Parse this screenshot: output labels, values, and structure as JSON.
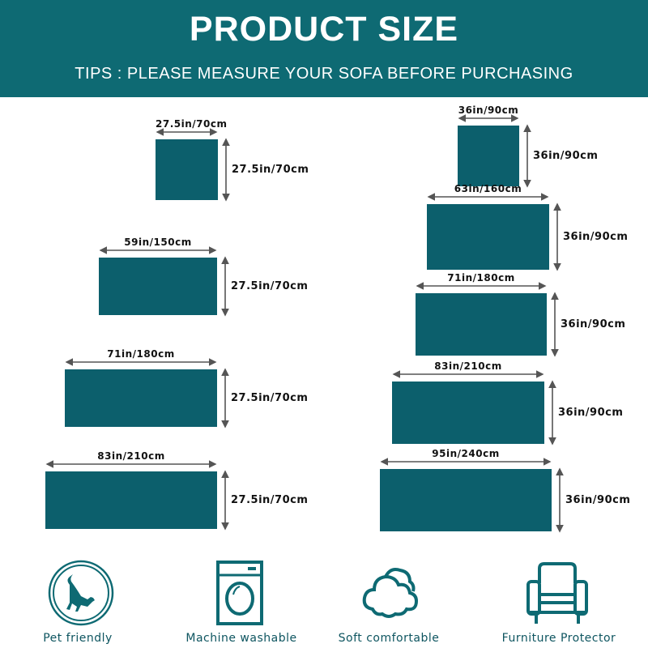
{
  "header": {
    "title": "PRODUCT SIZE",
    "tips": "TIPS : PLEASE MEASURE YOUR SOFA BEFORE PURCHASING"
  },
  "colors": {
    "header": "#0e6a73",
    "product": "#0c5f6c",
    "icon": "#0e6a73"
  },
  "left_sizes": [
    {
      "width": "27.5in/70cm",
      "height": "27.5in/70cm"
    },
    {
      "width": "59in/150cm",
      "height": "27.5in/70cm"
    },
    {
      "width": "71in/180cm",
      "height": "27.5in/70cm"
    },
    {
      "width": "83in/210cm",
      "height": "27.5in/70cm"
    }
  ],
  "right_sizes": [
    {
      "width": "36in/90cm",
      "height": "36in/90cm"
    },
    {
      "width": "63in/160cm",
      "height": "36in/90cm"
    },
    {
      "width": "71in/180cm",
      "height": "36in/90cm"
    },
    {
      "width": "83in/210cm",
      "height": "36in/90cm"
    },
    {
      "width": "95in/240cm",
      "height": "36in/90cm"
    }
  ],
  "features": [
    {
      "label": "Pet friendly",
      "icon": "cat-icon"
    },
    {
      "label": "Machine washable",
      "icon": "washing-machine-icon"
    },
    {
      "label": "Soft comfortable",
      "icon": "cloud-icon"
    },
    {
      "label": "Furniture Protector",
      "icon": "armchair-icon"
    }
  ]
}
